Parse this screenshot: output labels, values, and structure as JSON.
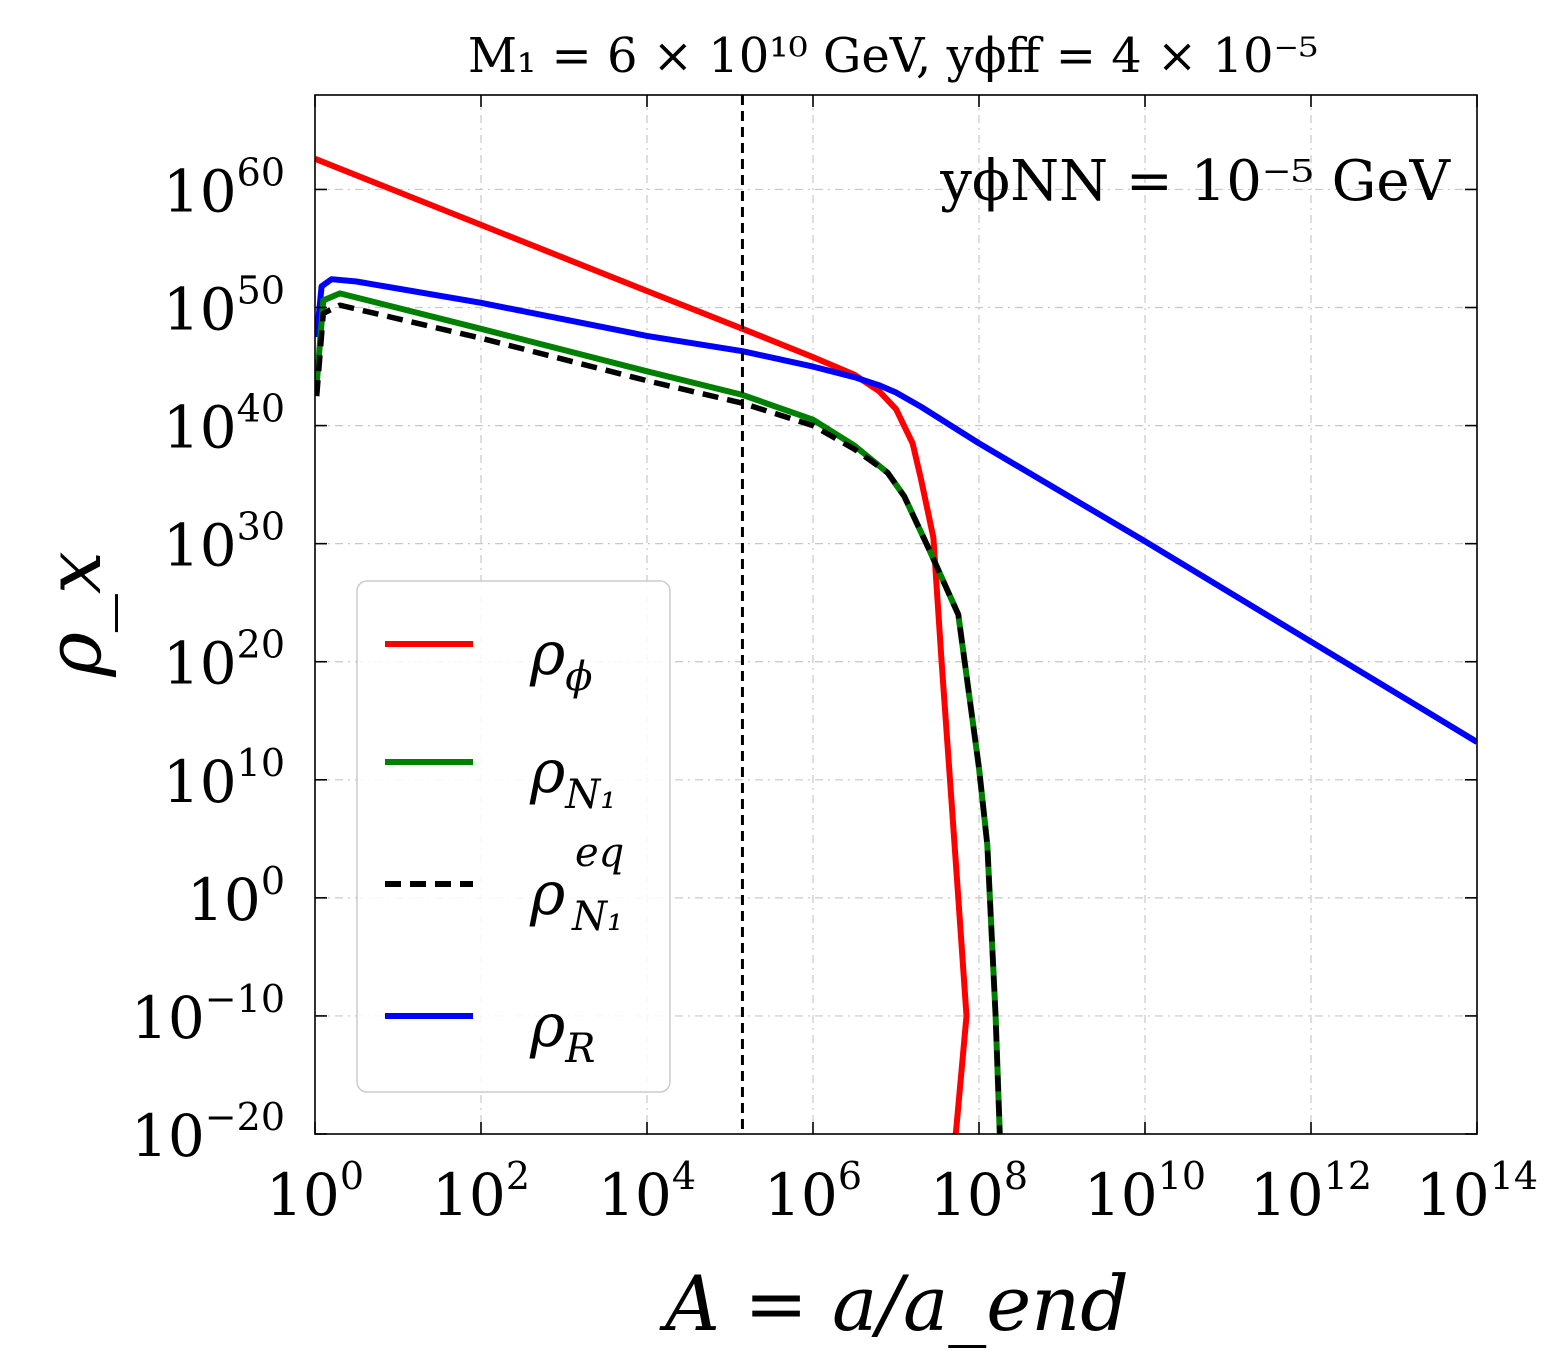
{
  "chart_data": {
    "type": "line",
    "title": "M₁ = 6 × 10¹⁰ GeV, yϕff = 4 × 10⁻⁵",
    "xlabel": "A = a/a_end",
    "ylabel": "ρ_x",
    "annotation": "yϕNN = 10⁻⁵ GeV",
    "xscale": "log",
    "yscale": "log",
    "xlim_log10": [
      0,
      14
    ],
    "ylim_log10": [
      -20,
      68
    ],
    "x_ticks": [
      {
        "exp": 0,
        "label": "10",
        "sup": "0"
      },
      {
        "exp": 2,
        "label": "10",
        "sup": "2"
      },
      {
        "exp": 4,
        "label": "10",
        "sup": "4"
      },
      {
        "exp": 6,
        "label": "10",
        "sup": "6"
      },
      {
        "exp": 8,
        "label": "10",
        "sup": "8"
      },
      {
        "exp": 10,
        "label": "10",
        "sup": "10"
      },
      {
        "exp": 12,
        "label": "10",
        "sup": "12"
      },
      {
        "exp": 14,
        "label": "10",
        "sup": "14"
      }
    ],
    "y_ticks": [
      {
        "exp": -20,
        "label": "10",
        "sup": "−20"
      },
      {
        "exp": -10,
        "label": "10",
        "sup": "−10"
      },
      {
        "exp": 0,
        "label": "10",
        "sup": "0"
      },
      {
        "exp": 10,
        "label": "10",
        "sup": "10"
      },
      {
        "exp": 20,
        "label": "10",
        "sup": "20"
      },
      {
        "exp": 30,
        "label": "10",
        "sup": "30"
      },
      {
        "exp": 40,
        "label": "10",
        "sup": "40"
      },
      {
        "exp": 50,
        "label": "10",
        "sup": "50"
      },
      {
        "exp": 60,
        "label": "10",
        "sup": "60"
      }
    ],
    "vline_log10_x": 5.15,
    "grid": true,
    "legend_position": "lower-left",
    "series": [
      {
        "name": "ρ_ϕ",
        "color": "#ff0000",
        "dash": "solid",
        "points_log10": [
          [
            0,
            62.6
          ],
          [
            2,
            57.0
          ],
          [
            4,
            51.4
          ],
          [
            5.15,
            48.2
          ],
          [
            6,
            45.8
          ],
          [
            6.5,
            44.3
          ],
          [
            6.8,
            42.9
          ],
          [
            7.0,
            41.4
          ],
          [
            7.2,
            38.5
          ],
          [
            7.3,
            35.5
          ],
          [
            7.45,
            30.5
          ],
          [
            7.55,
            20
          ],
          [
            7.65,
            10
          ],
          [
            7.75,
            0
          ],
          [
            7.85,
            -10
          ],
          [
            7.72,
            -20
          ]
        ]
      },
      {
        "name": "ρ_N1",
        "color": "#008000",
        "dash": "solid",
        "points_log10": [
          [
            0.02,
            43.5
          ],
          [
            0.1,
            50.6
          ],
          [
            0.3,
            51.2
          ],
          [
            2,
            48.2
          ],
          [
            4,
            44.6
          ],
          [
            5.15,
            42.6
          ],
          [
            6,
            40.5
          ],
          [
            6.5,
            38.3
          ],
          [
            6.9,
            36.0
          ],
          [
            7.1,
            34.0
          ],
          [
            7.4,
            29.5
          ],
          [
            7.75,
            24.0
          ],
          [
            8.0,
            11.0
          ],
          [
            8.1,
            4.5
          ],
          [
            8.2,
            -10
          ],
          [
            8.25,
            -20
          ]
        ]
      },
      {
        "name": "ρ_N1^eq",
        "color": "#000000",
        "dash": "dashed",
        "points_log10": [
          [
            0.02,
            42.5
          ],
          [
            0.1,
            49.5
          ],
          [
            0.3,
            50.2
          ],
          [
            2,
            47.4
          ],
          [
            4,
            43.8
          ],
          [
            5.15,
            41.9
          ],
          [
            6,
            40.0
          ],
          [
            6.5,
            38.0
          ],
          [
            6.9,
            36.0
          ],
          [
            7.1,
            34.0
          ],
          [
            7.4,
            29.5
          ],
          [
            7.75,
            24.0
          ],
          [
            8.0,
            11.0
          ],
          [
            8.1,
            4.5
          ],
          [
            8.2,
            -10
          ],
          [
            8.25,
            -20
          ]
        ]
      },
      {
        "name": "ρ_R",
        "color": "#0000ff",
        "dash": "solid",
        "points_log10": [
          [
            0.02,
            47.5
          ],
          [
            0.08,
            51.8
          ],
          [
            0.2,
            52.4
          ],
          [
            0.5,
            52.2
          ],
          [
            2,
            50.4
          ],
          [
            4,
            47.6
          ],
          [
            5.15,
            46.3
          ],
          [
            6,
            45.0
          ],
          [
            6.5,
            44.1
          ],
          [
            6.8,
            43.4
          ],
          [
            7.0,
            42.8
          ],
          [
            7.3,
            41.6
          ],
          [
            8,
            38.5
          ],
          [
            10,
            30.2
          ],
          [
            12,
            21.7
          ],
          [
            14,
            13.2
          ]
        ]
      }
    ],
    "legend": [
      {
        "main": "ρ",
        "sub": "ϕ",
        "sup": ""
      },
      {
        "main": "ρ",
        "sub": "N₁",
        "sup": ""
      },
      {
        "main": "ρ",
        "sub": "N₁",
        "sup": "eq"
      },
      {
        "main": "ρ",
        "sub": "R",
        "sup": ""
      }
    ]
  }
}
